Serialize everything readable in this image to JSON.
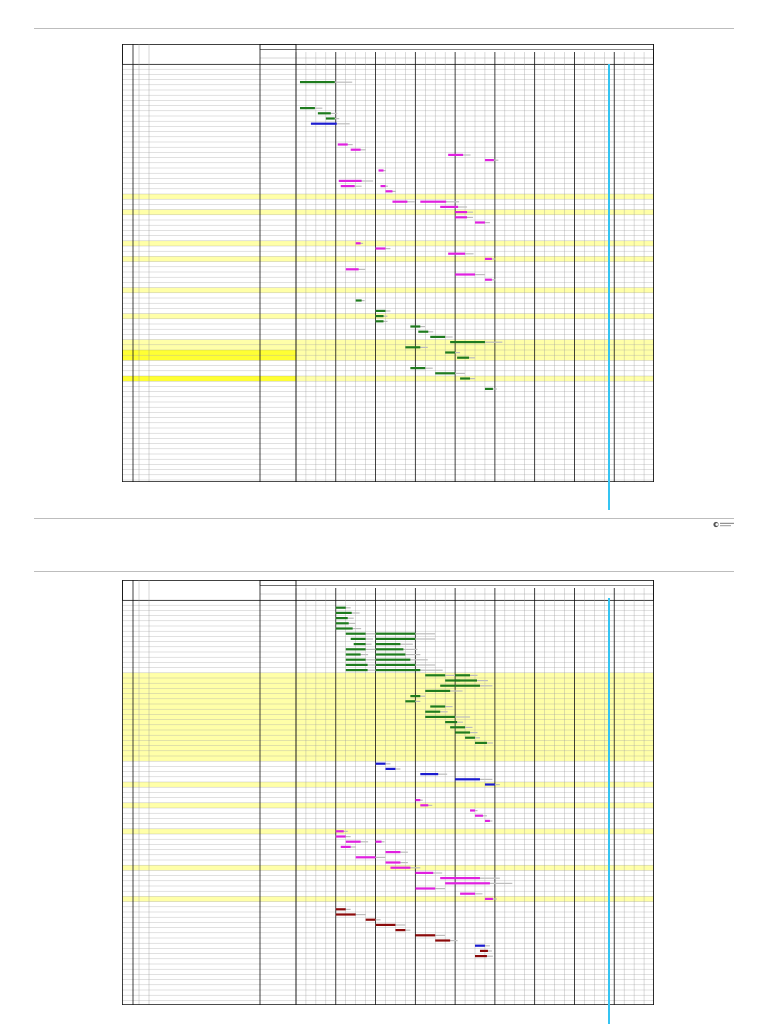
{
  "document": {
    "footer": {
      "logo_text": ""
    }
  },
  "colors": {
    "page_rule": "#bdbdbd",
    "grid": "#9a9a9a",
    "grid_strong": "#111111",
    "row_highlight": "#ffffa8",
    "row_highlight_strong": "#ffff33",
    "today_line": "#35c4f2",
    "bar_green": "#1e7b1e",
    "bar_green_light": "#4aa84a",
    "bar_magenta": "#e020e0",
    "bar_magenta_light": "#f080f0",
    "bar_blue": "#1b1bd0",
    "bar_darkred": "#8b0a0a",
    "bar_grey": "#bdbdbd"
  },
  "gantt": {
    "pages": [
      {
        "name": "page-1",
        "highlight_rows": [
          25,
          28,
          34,
          37,
          43,
          48,
          53,
          54
        ],
        "strong_highlight_rows": [
          55,
          56,
          60
        ],
        "bars": [
          {
            "row": 3,
            "col": 11.4,
            "len": 3.5,
            "color": "bar_green"
          },
          {
            "row": 8,
            "col": 11.4,
            "len": 1.5,
            "color": "bar_green"
          },
          {
            "row": 9,
            "col": 13.2,
            "len": 1.3,
            "color": "bar_green"
          },
          {
            "row": 10,
            "col": 14.0,
            "len": 0.9,
            "color": "bar_green"
          },
          {
            "row": 11,
            "col": 12.5,
            "len": 2.6,
            "color": "bar_blue"
          },
          {
            "row": 15,
            "col": 15.2,
            "len": 1.0,
            "color": "bar_magenta"
          },
          {
            "row": 16,
            "col": 16.5,
            "len": 1.0,
            "color": "bar_magenta"
          },
          {
            "row": 17,
            "col": 26.3,
            "len": 1.5,
            "color": "bar_magenta"
          },
          {
            "row": 18,
            "col": 30.0,
            "len": 0.9,
            "color": "bar_magenta"
          },
          {
            "row": 20,
            "col": 19.3,
            "len": 0.5,
            "color": "bar_magenta"
          },
          {
            "row": 22,
            "col": 15.3,
            "len": 2.3,
            "color": "bar_magenta"
          },
          {
            "row": 23,
            "col": 19.5,
            "len": 0.5,
            "color": "bar_magenta"
          },
          {
            "row": 23,
            "col": 15.5,
            "len": 1.4,
            "color": "bar_magenta"
          },
          {
            "row": 24,
            "col": 20.0,
            "len": 0.7,
            "color": "bar_magenta"
          },
          {
            "row": 26,
            "col": 20.7,
            "len": 1.5,
            "color": "bar_magenta"
          },
          {
            "row": 26,
            "col": 23.5,
            "len": 2.6,
            "color": "bar_magenta"
          },
          {
            "row": 27,
            "col": 25.5,
            "len": 1.8,
            "color": "bar_magenta"
          },
          {
            "row": 28,
            "col": 27.0,
            "len": 1.2,
            "color": "bar_magenta"
          },
          {
            "row": 29,
            "col": 27.0,
            "len": 1.2,
            "color": "bar_magenta"
          },
          {
            "row": 30,
            "col": 29.0,
            "len": 1.0,
            "color": "bar_magenta"
          },
          {
            "row": 34,
            "col": 17.0,
            "len": 0.5,
            "color": "bar_magenta"
          },
          {
            "row": 35,
            "col": 19.0,
            "len": 1.0,
            "color": "bar_magenta"
          },
          {
            "row": 36,
            "col": 26.3,
            "len": 1.7,
            "color": "bar_magenta"
          },
          {
            "row": 37,
            "col": 30.0,
            "len": 0.7,
            "color": "bar_magenta"
          },
          {
            "row": 39,
            "col": 16.0,
            "len": 1.3,
            "color": "bar_magenta"
          },
          {
            "row": 40,
            "col": 27.0,
            "len": 2.0,
            "color": "bar_magenta"
          },
          {
            "row": 41,
            "col": 30.0,
            "len": 0.7,
            "color": "bar_magenta"
          },
          {
            "row": 45,
            "col": 17.0,
            "len": 0.6,
            "color": "bar_green"
          },
          {
            "row": 47,
            "col": 19.0,
            "len": 1.0,
            "color": "bar_green"
          },
          {
            "row": 48,
            "col": 19.0,
            "len": 0.8,
            "color": "bar_green"
          },
          {
            "row": 49,
            "col": 19.0,
            "len": 0.8,
            "color": "bar_green"
          },
          {
            "row": 50,
            "col": 22.5,
            "len": 1.0,
            "color": "bar_green"
          },
          {
            "row": 51,
            "col": 23.3,
            "len": 1.0,
            "color": "bar_green"
          },
          {
            "row": 52,
            "col": 24.5,
            "len": 1.5,
            "color": "bar_green"
          },
          {
            "row": 53,
            "col": 26.5,
            "len": 3.5,
            "color": "bar_green"
          },
          {
            "row": 54,
            "col": 22.0,
            "len": 1.5,
            "color": "bar_green"
          },
          {
            "row": 55,
            "col": 26.0,
            "len": 1.0,
            "color": "bar_green"
          },
          {
            "row": 56,
            "col": 27.2,
            "len": 1.2,
            "color": "bar_green"
          },
          {
            "row": 58,
            "col": 22.5,
            "len": 1.5,
            "color": "bar_green"
          },
          {
            "row": 59,
            "col": 25.0,
            "len": 2.0,
            "color": "bar_green"
          },
          {
            "row": 60,
            "col": 27.5,
            "len": 1.0,
            "color": "bar_green"
          },
          {
            "row": 62,
            "col": 30.0,
            "len": 0.8,
            "color": "bar_green"
          }
        ]
      },
      {
        "name": "page-2",
        "highlight_rows": [
          14,
          15,
          16,
          17,
          18,
          19,
          20,
          21,
          22,
          23,
          24,
          25,
          26,
          27,
          28,
          29,
          30,
          35,
          39,
          44,
          51,
          57
        ],
        "strong_highlight_rows": [],
        "bars": [
          {
            "row": 1,
            "col": 15.0,
            "len": 1.0,
            "color": "bar_green"
          },
          {
            "row": 2,
            "col": 15.0,
            "len": 1.6,
            "color": "bar_green"
          },
          {
            "row": 3,
            "col": 15.0,
            "len": 1.2,
            "color": "bar_green"
          },
          {
            "row": 4,
            "col": 15.0,
            "len": 1.3,
            "color": "bar_green"
          },
          {
            "row": 5,
            "col": 15.0,
            "len": 1.7,
            "color": "bar_green"
          },
          {
            "row": 6,
            "col": 16.0,
            "len": 2.0,
            "color": "bar_green"
          },
          {
            "row": 6,
            "col": 19.0,
            "len": 4.0,
            "color": "bar_green"
          },
          {
            "row": 7,
            "col": 16.5,
            "len": 1.5,
            "color": "bar_green"
          },
          {
            "row": 7,
            "col": 19.0,
            "len": 4.0,
            "color": "bar_green"
          },
          {
            "row": 8,
            "col": 16.8,
            "len": 1.2,
            "color": "bar_green"
          },
          {
            "row": 8,
            "col": 19.0,
            "len": 2.5,
            "color": "bar_green"
          },
          {
            "row": 9,
            "col": 16.0,
            "len": 2.0,
            "color": "bar_green"
          },
          {
            "row": 9,
            "col": 19.0,
            "len": 2.8,
            "color": "bar_green"
          },
          {
            "row": 10,
            "col": 16.0,
            "len": 1.5,
            "color": "bar_green"
          },
          {
            "row": 10,
            "col": 19.0,
            "len": 3.0,
            "color": "bar_green"
          },
          {
            "row": 11,
            "col": 16.0,
            "len": 2.0,
            "color": "bar_green"
          },
          {
            "row": 11,
            "col": 19.0,
            "len": 3.5,
            "color": "bar_green"
          },
          {
            "row": 12,
            "col": 16.0,
            "len": 2.2,
            "color": "bar_green"
          },
          {
            "row": 12,
            "col": 19.0,
            "len": 4.0,
            "color": "bar_green"
          },
          {
            "row": 13,
            "col": 16.0,
            "len": 2.2,
            "color": "bar_green"
          },
          {
            "row": 13,
            "col": 19.0,
            "len": 4.5,
            "color": "bar_green"
          },
          {
            "row": 14,
            "col": 24.0,
            "len": 2.0,
            "color": "bar_green"
          },
          {
            "row": 14,
            "col": 27.0,
            "len": 1.5,
            "color": "bar_green"
          },
          {
            "row": 15,
            "col": 26.0,
            "len": 1.5,
            "color": "bar_green"
          },
          {
            "row": 15,
            "col": 27.0,
            "len": 2.2,
            "color": "bar_green"
          },
          {
            "row": 16,
            "col": 25.5,
            "len": 1.5,
            "color": "bar_green"
          },
          {
            "row": 16,
            "col": 27.0,
            "len": 2.5,
            "color": "bar_green"
          },
          {
            "row": 17,
            "col": 24.0,
            "len": 2.5,
            "color": "bar_green"
          },
          {
            "row": 18,
            "col": 22.5,
            "len": 1.0,
            "color": "bar_green"
          },
          {
            "row": 19,
            "col": 22.0,
            "len": 1.0,
            "color": "bar_green"
          },
          {
            "row": 20,
            "col": 24.5,
            "len": 1.5,
            "color": "bar_green"
          },
          {
            "row": 21,
            "col": 24.0,
            "len": 1.5,
            "color": "bar_green"
          },
          {
            "row": 22,
            "col": 24.0,
            "len": 3.0,
            "color": "bar_green"
          },
          {
            "row": 23,
            "col": 26.0,
            "len": 1.2,
            "color": "bar_green"
          },
          {
            "row": 24,
            "col": 26.5,
            "len": 1.5,
            "color": "bar_green"
          },
          {
            "row": 25,
            "col": 27.0,
            "len": 1.5,
            "color": "bar_green"
          },
          {
            "row": 26,
            "col": 28.0,
            "len": 1.0,
            "color": "bar_green"
          },
          {
            "row": 27,
            "col": 29.0,
            "len": 1.2,
            "color": "bar_green"
          },
          {
            "row": 31,
            "col": 19.0,
            "len": 1.0,
            "color": "bar_blue"
          },
          {
            "row": 32,
            "col": 20.0,
            "len": 1.0,
            "color": "bar_blue"
          },
          {
            "row": 33,
            "col": 23.5,
            "len": 1.8,
            "color": "bar_blue"
          },
          {
            "row": 34,
            "col": 27.0,
            "len": 2.5,
            "color": "bar_blue"
          },
          {
            "row": 35,
            "col": 30.0,
            "len": 1.0,
            "color": "bar_blue"
          },
          {
            "row": 38,
            "col": 23.0,
            "len": 0.5,
            "color": "bar_magenta"
          },
          {
            "row": 39,
            "col": 23.5,
            "len": 0.8,
            "color": "bar_magenta"
          },
          {
            "row": 40,
            "col": 28.5,
            "len": 0.5,
            "color": "bar_magenta"
          },
          {
            "row": 41,
            "col": 29.0,
            "len": 0.8,
            "color": "bar_magenta"
          },
          {
            "row": 42,
            "col": 30.0,
            "len": 0.5,
            "color": "bar_magenta"
          },
          {
            "row": 44,
            "col": 15.0,
            "len": 0.8,
            "color": "bar_magenta"
          },
          {
            "row": 45,
            "col": 15.0,
            "len": 1.0,
            "color": "bar_magenta"
          },
          {
            "row": 46,
            "col": 16.0,
            "len": 1.5,
            "color": "bar_magenta"
          },
          {
            "row": 46,
            "col": 19.0,
            "len": 0.6,
            "color": "bar_magenta"
          },
          {
            "row": 47,
            "col": 15.5,
            "len": 1.0,
            "color": "bar_magenta"
          },
          {
            "row": 48,
            "col": 20.0,
            "len": 1.5,
            "color": "bar_magenta"
          },
          {
            "row": 49,
            "col": 17.0,
            "len": 2.0,
            "color": "bar_magenta"
          },
          {
            "row": 50,
            "col": 20.0,
            "len": 1.5,
            "color": "bar_magenta"
          },
          {
            "row": 51,
            "col": 20.5,
            "len": 2.0,
            "color": "bar_magenta"
          },
          {
            "row": 52,
            "col": 23.0,
            "len": 1.8,
            "color": "bar_magenta"
          },
          {
            "row": 53,
            "col": 25.5,
            "len": 4.0,
            "color": "bar_magenta"
          },
          {
            "row": 54,
            "col": 26.0,
            "len": 4.5,
            "color": "bar_magenta"
          },
          {
            "row": 55,
            "col": 23.0,
            "len": 2.0,
            "color": "bar_magenta"
          },
          {
            "row": 56,
            "col": 27.5,
            "len": 1.5,
            "color": "bar_magenta"
          },
          {
            "row": 57,
            "col": 30.0,
            "len": 0.8,
            "color": "bar_magenta"
          },
          {
            "row": 59,
            "col": 15.0,
            "len": 1.0,
            "color": "bar_darkred"
          },
          {
            "row": 60,
            "col": 15.0,
            "len": 2.0,
            "color": "bar_darkred"
          },
          {
            "row": 61,
            "col": 18.0,
            "len": 1.0,
            "color": "bar_darkred"
          },
          {
            "row": 62,
            "col": 19.0,
            "len": 2.0,
            "color": "bar_darkred"
          },
          {
            "row": 63,
            "col": 21.0,
            "len": 1.0,
            "color": "bar_darkred"
          },
          {
            "row": 64,
            "col": 23.0,
            "len": 2.0,
            "color": "bar_darkred"
          },
          {
            "row": 65,
            "col": 25.0,
            "len": 1.5,
            "color": "bar_darkred"
          },
          {
            "row": 66,
            "col": 29.0,
            "len": 1.0,
            "color": "bar_blue"
          },
          {
            "row": 67,
            "col": 29.5,
            "len": 0.8,
            "color": "bar_darkred"
          },
          {
            "row": 68,
            "col": 29.0,
            "len": 1.2,
            "color": "bar_darkred"
          }
        ]
      }
    ]
  }
}
